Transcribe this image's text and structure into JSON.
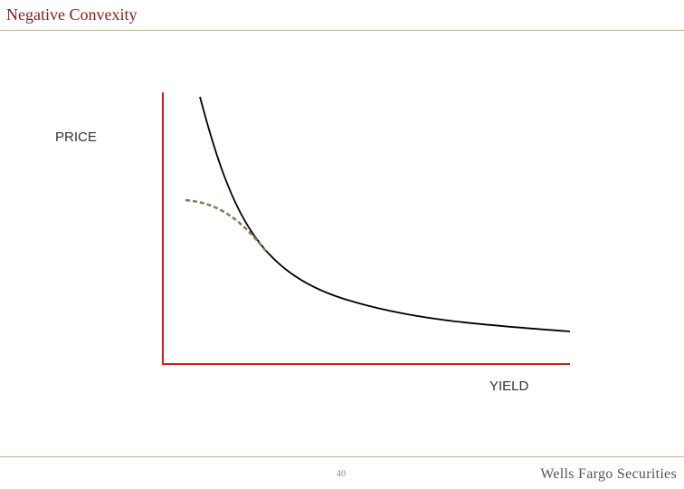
{
  "slide": {
    "title": "Negative Convexity"
  },
  "diagram": {
    "y_axis_label": "PRICE",
    "x_axis_label": "YIELD",
    "axis_color": "#d11f1f",
    "curve_color": "#000000",
    "dashed_curve_color": "#8a7654"
  },
  "footer": {
    "page_number": "40",
    "brand": "Wells Fargo Securities"
  }
}
